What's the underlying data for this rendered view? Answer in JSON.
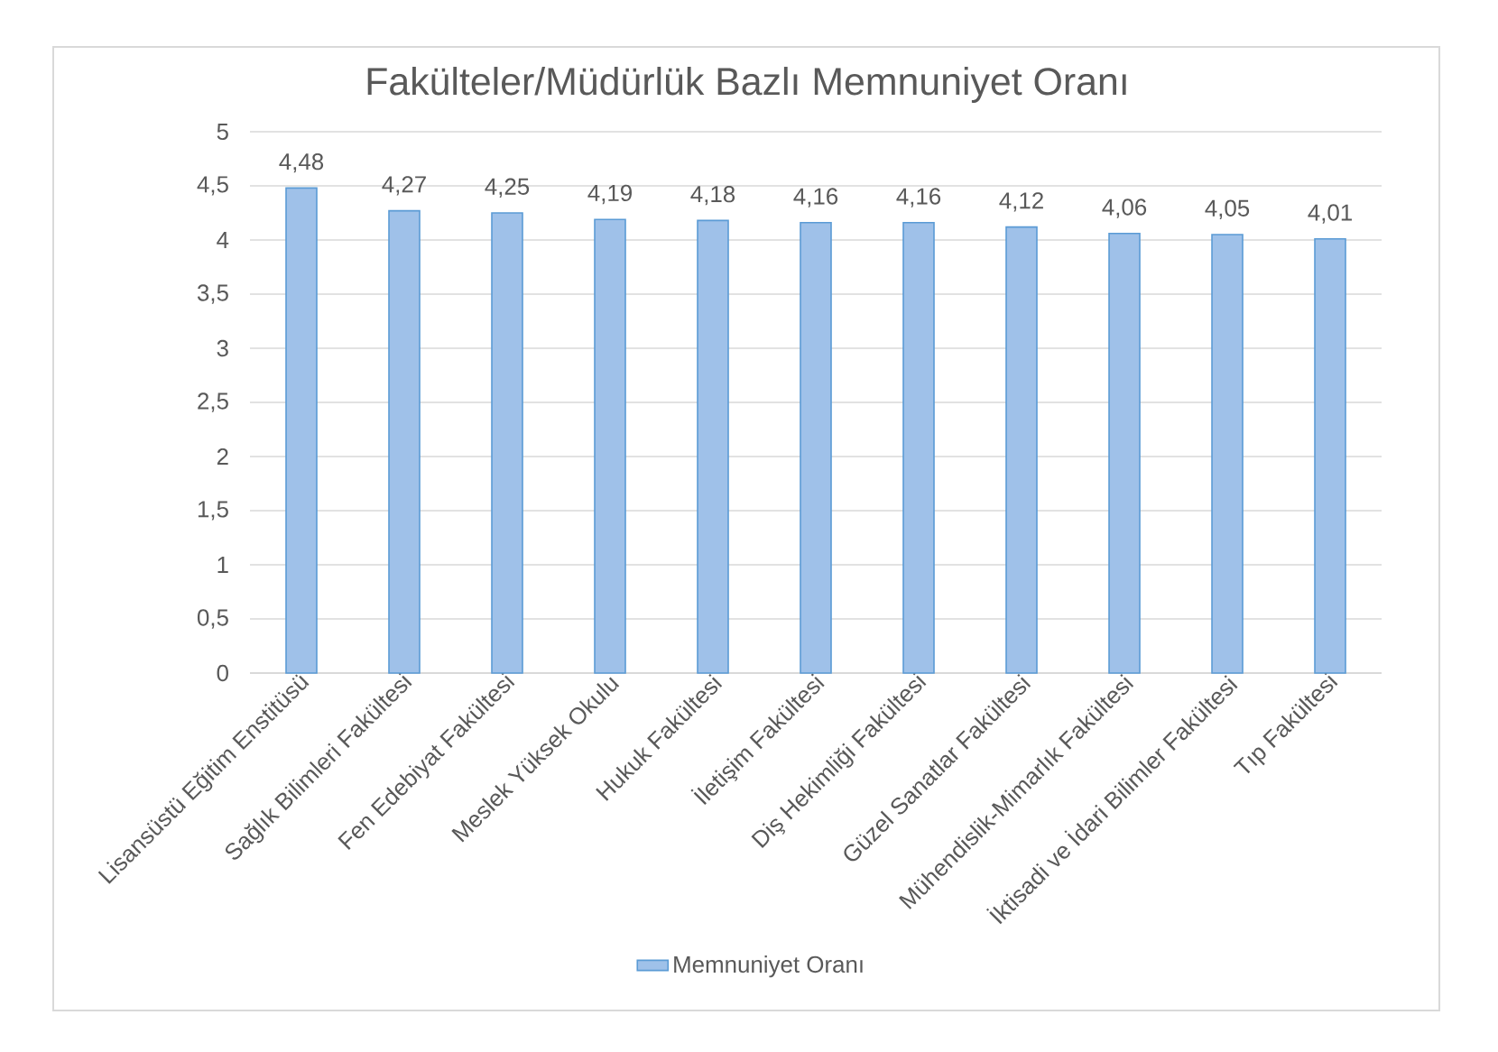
{
  "chart_data": {
    "type": "bar",
    "title": "Fakülteler/Müdürlük Bazlı Memnuniyet Oranı",
    "categories": [
      "Lisansüstü Eğitim Enstitüsü",
      "Sağlık Bilimleri Fakültesi",
      "Fen Edebiyat Fakültesi",
      "Meslek Yüksek Okulu",
      "Hukuk Fakültesi",
      "İletişim Fakültesi",
      "Diş Hekimliği Fakültesi",
      "Güzel Sanatlar Fakültesi",
      "Mühendislik-Mimarlık Fakültesi",
      "İktisadi ve İdari Bilimler Fakültesi",
      "Tıp Fakültesi"
    ],
    "series": [
      {
        "name": "Memnuniyet Oranı",
        "color": "#9fc1e9",
        "values": [
          4.48,
          4.27,
          4.25,
          4.19,
          4.18,
          4.16,
          4.16,
          4.12,
          4.06,
          4.05,
          4.01
        ],
        "value_labels": [
          "4,48",
          "4,27",
          "4,25",
          "4,19",
          "4,18",
          "4,16",
          "4,16",
          "4,12",
          "4,06",
          "4,05",
          "4,01"
        ]
      }
    ],
    "ylim": [
      0,
      5
    ],
    "yticks": [
      0,
      {
        "value": 0.5,
        "label": "0,5"
      },
      1,
      {
        "value": 1.5,
        "label": "1,5"
      },
      2,
      {
        "value": 2.5,
        "label": "2,5"
      },
      3,
      {
        "value": 3.5,
        "label": "3,5"
      },
      4,
      {
        "value": 4.5,
        "label": "4,5"
      },
      5
    ],
    "grid": "y",
    "legend": "bottom"
  }
}
